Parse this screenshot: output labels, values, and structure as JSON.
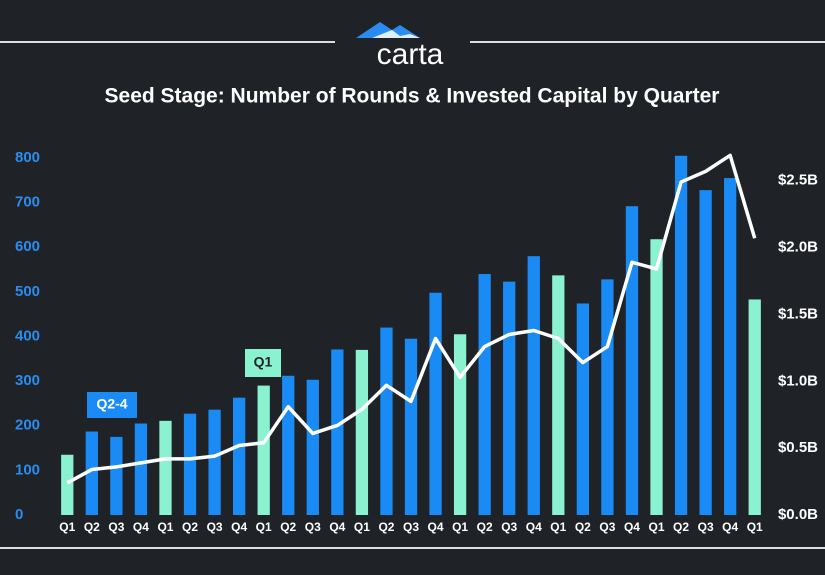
{
  "logo": "carta",
  "chart_data": {
    "type": "bar",
    "title": "Seed Stage: Number of Rounds & Invested Capital by Quarter",
    "categories": [
      "Q1",
      "Q2",
      "Q3",
      "Q4",
      "Q1",
      "Q2",
      "Q3",
      "Q4",
      "Q1",
      "Q2",
      "Q3",
      "Q4",
      "Q1",
      "Q2",
      "Q3",
      "Q4",
      "Q1",
      "Q2",
      "Q3",
      "Q4",
      "Q1",
      "Q2",
      "Q3",
      "Q4",
      "Q1",
      "Q2",
      "Q3",
      "Q4",
      "Q1"
    ],
    "series": [
      {
        "type": "bar",
        "colors": [
          "#8af2cf",
          "#1a8bf5",
          "#1a8bf5",
          "#1a8bf5",
          "#8af2cf",
          "#1a8bf5",
          "#1a8bf5",
          "#1a8bf5",
          "#8af2cf",
          "#1a8bf5",
          "#1a8bf5",
          "#1a8bf5",
          "#8af2cf",
          "#1a8bf5",
          "#1a8bf5",
          "#1a8bf5",
          "#8af2cf",
          "#1a8bf5",
          "#1a8bf5",
          "#1a8bf5",
          "#8af2cf",
          "#1a8bf5",
          "#1a8bf5",
          "#1a8bf5",
          "#8af2cf",
          "#1a8bf5",
          "#1a8bf5",
          "#1a8bf5",
          "#8af2cf"
        ],
        "values": [
          135,
          187,
          175,
          205,
          211,
          227,
          236,
          263,
          290,
          312,
          303,
          371,
          370,
          420,
          395,
          498,
          405,
          540,
          523,
          580,
          537,
          474,
          528,
          692,
          618,
          805,
          728,
          755,
          483
        ]
      },
      {
        "type": "line",
        "axis": "y2",
        "color": "#ffffff",
        "values": [
          0.24,
          0.34,
          0.36,
          0.39,
          0.42,
          0.42,
          0.44,
          0.52,
          0.54,
          0.81,
          0.61,
          0.67,
          0.79,
          0.97,
          0.85,
          1.32,
          1.03,
          1.26,
          1.35,
          1.38,
          1.32,
          1.14,
          1.26,
          1.89,
          1.84,
          2.49,
          2.57,
          2.69,
          2.07
        ]
      }
    ],
    "annotations": [
      {
        "text": "Q2-4",
        "color": "#1a8bf5"
      },
      {
        "text": "Q1",
        "color": "#8af2cf"
      }
    ],
    "ylim": [
      0,
      800
    ],
    "yticks": [
      0,
      100,
      200,
      300,
      400,
      500,
      600,
      700,
      800
    ],
    "y2lim": [
      0,
      2.67
    ],
    "y2ticks": [
      {
        "value": 0,
        "label": "$0.0B"
      },
      {
        "value": 0.5,
        "label": "$0.5B"
      },
      {
        "value": 1,
        "label": "$1.0B"
      },
      {
        "value": 1.5,
        "label": "$1.5B"
      },
      {
        "value": 2,
        "label": "$2.0B"
      },
      {
        "value": 2.5,
        "label": "$2.5B"
      }
    ],
    "grid": false
  }
}
